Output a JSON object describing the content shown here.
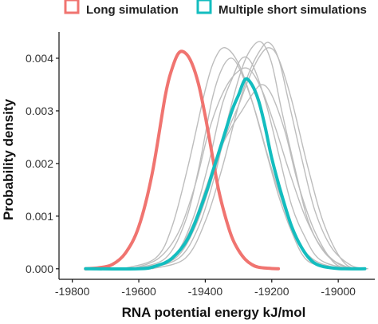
{
  "chart_data": {
    "type": "line",
    "title": "",
    "xlabel": "RNA potential energy kJ/mol",
    "ylabel": "Probability density",
    "xlim": [
      -19840,
      -18890
    ],
    "ylim": [
      -0.0002,
      0.0045
    ],
    "x_ticks": [
      -19800,
      -19600,
      -19400,
      -19200,
      -19000
    ],
    "y_ticks": [
      0.0,
      0.001,
      0.002,
      0.003,
      0.004
    ],
    "x_tick_labels": [
      "-19800",
      "-19600",
      "-19400",
      "-19200",
      "-19000"
    ],
    "y_tick_labels": [
      "0.000",
      "0.001",
      "0.002",
      "0.003",
      "0.004"
    ],
    "grid": false,
    "legend_position": "top",
    "legend": [
      {
        "label": "Long simulation",
        "color": "#F07470"
      },
      {
        "label": "Multiple short simulations",
        "color": "#13BDBF"
      }
    ],
    "series": [
      {
        "name": "Long simulation",
        "color": "#F07470",
        "role": "main",
        "x": [
          -19760,
          -19720,
          -19680,
          -19640,
          -19600,
          -19560,
          -19520,
          -19500,
          -19480,
          -19460,
          -19440,
          -19420,
          -19400,
          -19380,
          -19360,
          -19340,
          -19320,
          -19300,
          -19280,
          -19260,
          -19240,
          -19210,
          -19180
        ],
        "y": [
          0.0,
          2e-05,
          8e-05,
          0.0003,
          0.0008,
          0.0018,
          0.0033,
          0.0038,
          0.0041,
          0.0041,
          0.0039,
          0.0035,
          0.0029,
          0.0022,
          0.0015,
          0.001,
          0.0006,
          0.00035,
          0.00018,
          8e-05,
          3e-05,
          1e-05,
          0.0
        ]
      },
      {
        "name": "Multiple short simulations",
        "color": "#13BDBF",
        "role": "main",
        "x": [
          -19760,
          -19600,
          -19550,
          -19500,
          -19450,
          -19400,
          -19380,
          -19350,
          -19320,
          -19300,
          -19280,
          -19260,
          -19240,
          -19220,
          -19200,
          -19170,
          -19140,
          -19110,
          -19080,
          -19050,
          -19010,
          -18980,
          -18920
        ],
        "y": [
          0.0,
          0.0,
          5e-05,
          0.0002,
          0.0006,
          0.0014,
          0.0018,
          0.0024,
          0.003,
          0.0033,
          0.0036,
          0.0035,
          0.0032,
          0.0027,
          0.0021,
          0.0014,
          0.0008,
          0.0004,
          0.00015,
          5e-05,
          1e-05,
          0.0,
          0.0
        ]
      },
      {
        "role": "replicate",
        "color": "#BDBDBD",
        "x": [
          -19650,
          -19550,
          -19500,
          -19450,
          -19400,
          -19370,
          -19340,
          -19300,
          -19260,
          -19220,
          -19180,
          -19140,
          -19100,
          -19050,
          -18980
        ],
        "y": [
          0.0,
          0.0002,
          0.0008,
          0.002,
          0.0034,
          0.004,
          0.0042,
          0.0039,
          0.0032,
          0.0023,
          0.0014,
          0.0007,
          0.0002,
          5e-05,
          0.0
        ]
      },
      {
        "role": "replicate",
        "color": "#BDBDBD",
        "x": [
          -19620,
          -19520,
          -19460,
          -19420,
          -19380,
          -19350,
          -19320,
          -19290,
          -19250,
          -19210,
          -19170,
          -19130,
          -19080,
          -19020,
          -18960
        ],
        "y": [
          0.0,
          0.0002,
          0.0009,
          0.0019,
          0.0032,
          0.0038,
          0.004,
          0.0037,
          0.003,
          0.0021,
          0.0013,
          0.0006,
          0.0002,
          4e-05,
          0.0
        ]
      },
      {
        "role": "replicate",
        "color": "#BDBDBD",
        "x": [
          -19600,
          -19500,
          -19440,
          -19390,
          -19350,
          -19320,
          -19290,
          -19260,
          -19220,
          -19180,
          -19140,
          -19100,
          -19060,
          -19000,
          -18940
        ],
        "y": [
          0.0,
          0.0002,
          0.0009,
          0.002,
          0.0031,
          0.0036,
          0.004,
          0.0039,
          0.0032,
          0.0022,
          0.0012,
          0.0006,
          0.0002,
          4e-05,
          0.0
        ]
      },
      {
        "role": "replicate",
        "color": "#BDBDBD",
        "x": [
          -19580,
          -19480,
          -19420,
          -19370,
          -19330,
          -19290,
          -19260,
          -19230,
          -19200,
          -19170,
          -19130,
          -19090,
          -19040,
          -18980,
          -18920
        ],
        "y": [
          0.0,
          0.0002,
          0.0008,
          0.0018,
          0.0029,
          0.0038,
          0.0042,
          0.0043,
          0.0039,
          0.003,
          0.0019,
          0.0009,
          0.0003,
          5e-05,
          0.0
        ]
      },
      {
        "role": "replicate",
        "color": "#BDBDBD",
        "x": [
          -19560,
          -19460,
          -19400,
          -19350,
          -19300,
          -19270,
          -19240,
          -19210,
          -19180,
          -19150,
          -19110,
          -19070,
          -19020,
          -18960,
          -18910
        ],
        "y": [
          0.0,
          0.0002,
          0.0009,
          0.0019,
          0.0031,
          0.0037,
          0.0041,
          0.0043,
          0.004,
          0.0032,
          0.0021,
          0.0011,
          0.0004,
          6e-05,
          0.0
        ]
      },
      {
        "role": "replicate",
        "color": "#BDBDBD",
        "x": [
          -19600,
          -19500,
          -19440,
          -19400,
          -19360,
          -19320,
          -19290,
          -19260,
          -19230,
          -19200,
          -19160,
          -19120,
          -19070,
          -19010,
          -18950
        ],
        "y": [
          0.0,
          0.0002,
          0.0008,
          0.0015,
          0.0022,
          0.0027,
          0.003,
          0.0033,
          0.0035,
          0.0033,
          0.0026,
          0.0016,
          0.0007,
          0.0001,
          0.0
        ]
      },
      {
        "role": "replicate",
        "color": "#BDBDBD",
        "x": [
          -19620,
          -19540,
          -19480,
          -19430,
          -19390,
          -19350,
          -19310,
          -19270,
          -19230,
          -19190,
          -19150,
          -19100,
          -19050,
          -18990,
          -18930
        ],
        "y": [
          0.0,
          0.0002,
          0.0007,
          0.0016,
          0.0026,
          0.0033,
          0.0037,
          0.0038,
          0.0034,
          0.0027,
          0.0019,
          0.001,
          0.0004,
          6e-05,
          0.0
        ]
      },
      {
        "role": "replicate",
        "color": "#BDBDBD",
        "x": [
          -19590,
          -19490,
          -19430,
          -19380,
          -19340,
          -19300,
          -19270,
          -19240,
          -19210,
          -19180,
          -19140,
          -19090,
          -19040,
          -18980,
          -18920
        ],
        "y": [
          0.0,
          0.0002,
          0.0008,
          0.0017,
          0.0025,
          0.0031,
          0.0036,
          0.004,
          0.0042,
          0.004,
          0.0032,
          0.0019,
          0.0008,
          0.0001,
          0.0
        ]
      }
    ]
  }
}
